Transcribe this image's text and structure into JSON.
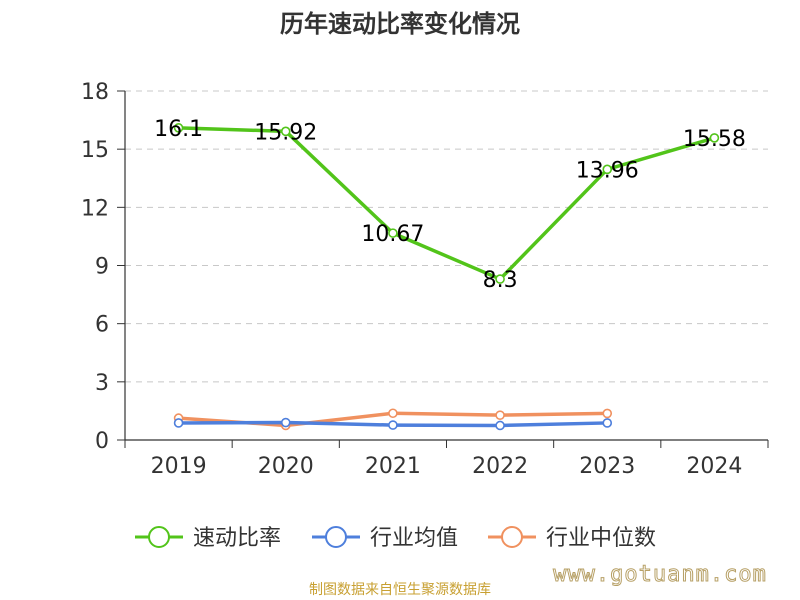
{
  "chart_data": {
    "type": "line",
    "title": "历年速动比率变化情况",
    "categories": [
      "2019",
      "2020",
      "2021",
      "2022",
      "2023",
      "2024"
    ],
    "ylim": [
      0,
      18
    ],
    "yticks": [
      0,
      3,
      6,
      9,
      12,
      15,
      18
    ],
    "grid": true,
    "legend_position": "bottom",
    "series": [
      {
        "name": "速动比率",
        "color": "#52c41a",
        "values": [
          16.1,
          15.92,
          10.67,
          8.3,
          13.96,
          15.58
        ],
        "labels": [
          "16.1",
          "15.92",
          "10.67",
          "8.3",
          "13.96",
          "15.58"
        ]
      },
      {
        "name": "行业均值",
        "color": "#4e7fdc",
        "values": [
          0.88,
          0.9,
          0.77,
          0.75,
          0.88,
          null
        ]
      },
      {
        "name": "行业中位数",
        "color": "#f0915f",
        "values": [
          1.13,
          0.75,
          1.38,
          1.28,
          1.37,
          null
        ]
      }
    ]
  },
  "footer": {
    "source": "制图数据来自恒生聚源数据库",
    "watermark": "www.gotuanm.com"
  }
}
